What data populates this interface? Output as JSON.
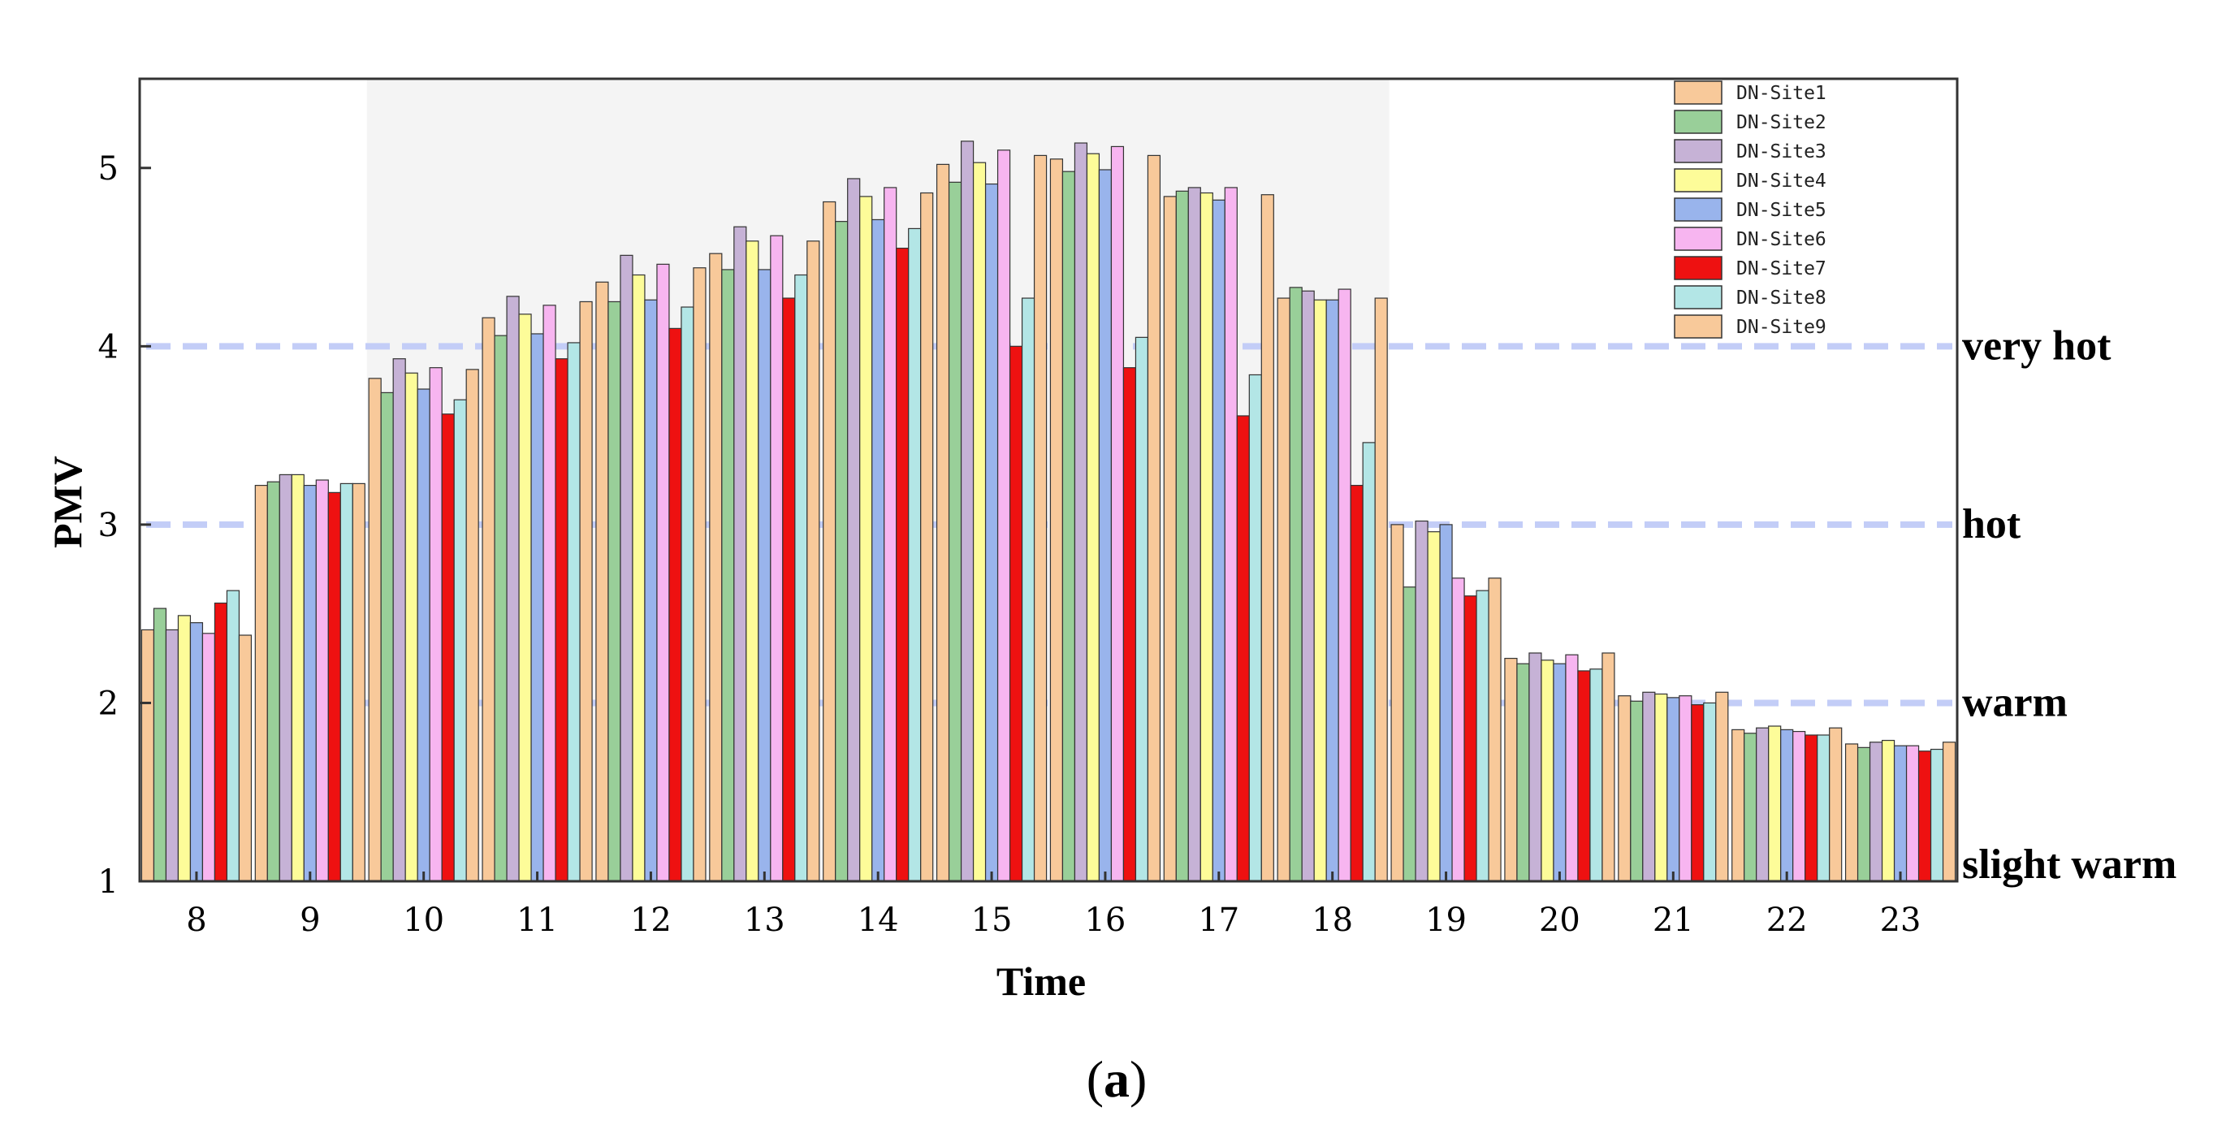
{
  "chart_data": {
    "type": "bar",
    "xlabel": "Time",
    "ylabel": "PMV",
    "ylim": [
      1,
      5.5
    ],
    "yticks": [
      1,
      2,
      3,
      4,
      5
    ],
    "categories": [
      "8",
      "9",
      "10",
      "11",
      "12",
      "13",
      "14",
      "15",
      "16",
      "17",
      "18",
      "19",
      "20",
      "21",
      "22",
      "23"
    ],
    "shaded_range": [
      "10",
      "18"
    ],
    "reference_lines": [
      {
        "value": 4,
        "label": "very hot"
      },
      {
        "value": 3,
        "label": "hot"
      },
      {
        "value": 2,
        "label": "warm"
      },
      {
        "value": 1,
        "label": "slight warm"
      }
    ],
    "legend_position": "top-right",
    "caption": {
      "open": "(",
      "letter": "a",
      "close": ")"
    },
    "series": [
      {
        "name": "DN-Site1",
        "color": "#f8c99a",
        "values": [
          2.41,
          3.22,
          3.82,
          4.16,
          4.36,
          4.52,
          4.81,
          5.02,
          5.05,
          4.84,
          4.27,
          3.0,
          2.25,
          2.04,
          1.85,
          1.77
        ]
      },
      {
        "name": "DN-Site2",
        "color": "#99cf99",
        "values": [
          2.53,
          3.24,
          3.74,
          4.06,
          4.25,
          4.43,
          4.7,
          4.92,
          4.98,
          4.87,
          4.33,
          2.65,
          2.22,
          2.01,
          1.83,
          1.75
        ]
      },
      {
        "name": "DN-Site3",
        "color": "#c6b2d6",
        "values": [
          2.41,
          3.28,
          3.93,
          4.28,
          4.51,
          4.67,
          4.94,
          5.15,
          5.14,
          4.89,
          4.31,
          3.02,
          2.28,
          2.06,
          1.86,
          1.78
        ]
      },
      {
        "name": "DN-Site4",
        "color": "#fdfc99",
        "values": [
          2.49,
          3.28,
          3.85,
          4.18,
          4.4,
          4.59,
          4.84,
          5.03,
          5.08,
          4.86,
          4.26,
          2.96,
          2.24,
          2.05,
          1.87,
          1.79
        ]
      },
      {
        "name": "DN-Site5",
        "color": "#99b4ec",
        "values": [
          2.45,
          3.22,
          3.76,
          4.07,
          4.26,
          4.43,
          4.71,
          4.91,
          4.99,
          4.82,
          4.26,
          3.0,
          2.22,
          2.03,
          1.85,
          1.76
        ]
      },
      {
        "name": "DN-Site6",
        "color": "#f7b5f0",
        "values": [
          2.39,
          3.25,
          3.88,
          4.23,
          4.46,
          4.62,
          4.89,
          5.1,
          5.12,
          4.89,
          4.32,
          2.7,
          2.27,
          2.04,
          1.84,
          1.76
        ]
      },
      {
        "name": "DN-Site7",
        "color": "#ee1111",
        "values": [
          2.56,
          3.18,
          3.62,
          3.93,
          4.1,
          4.27,
          4.55,
          4.0,
          3.88,
          3.61,
          3.22,
          2.6,
          2.18,
          1.99,
          1.82,
          1.73
        ]
      },
      {
        "name": "DN-Site8",
        "color": "#b3e6e6",
        "values": [
          2.63,
          3.23,
          3.7,
          4.02,
          4.22,
          4.4,
          4.66,
          4.27,
          4.05,
          3.84,
          3.46,
          2.63,
          2.19,
          2.0,
          1.82,
          1.74
        ]
      },
      {
        "name": "DN-Site9",
        "color": "#f8c99a",
        "values": [
          2.38,
          3.23,
          3.87,
          4.25,
          4.44,
          4.59,
          4.86,
          5.07,
          5.07,
          4.85,
          4.27,
          2.7,
          2.28,
          2.06,
          1.86,
          1.78
        ]
      }
    ]
  }
}
